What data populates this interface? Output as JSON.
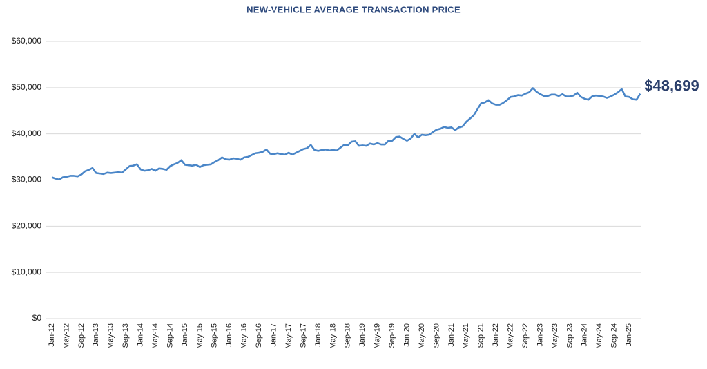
{
  "chart_data": {
    "type": "line",
    "title": "NEW-VEHICLE AVERAGE TRANSACTION PRICE",
    "categories": [
      "Jan-12",
      null,
      null,
      null,
      "May-12",
      null,
      null,
      null,
      "Sep-12",
      null,
      null,
      null,
      "Jan-13",
      null,
      null,
      null,
      "May-13",
      null,
      null,
      null,
      "Sep-13",
      null,
      null,
      null,
      "Jan-14",
      null,
      null,
      null,
      "May-14",
      null,
      null,
      null,
      "Sep-14",
      null,
      null,
      null,
      "Jan-15",
      null,
      null,
      null,
      "May-15",
      null,
      null,
      null,
      "Sep-15",
      null,
      null,
      null,
      "Jan-16",
      null,
      null,
      null,
      "May-16",
      null,
      null,
      null,
      "Sep-16",
      null,
      null,
      null,
      "Jan-17",
      null,
      null,
      null,
      "May-17",
      null,
      null,
      null,
      "Sep-17",
      null,
      null,
      null,
      "Jan-18",
      null,
      null,
      null,
      "May-18",
      null,
      null,
      null,
      "Sep-18",
      null,
      null,
      null,
      "Jan-19",
      null,
      null,
      null,
      "May-19",
      null,
      null,
      null,
      "Sep-19",
      null,
      null,
      null,
      "Jan-20",
      null,
      null,
      null,
      "May-20",
      null,
      null,
      null,
      "Sep-20",
      null,
      null,
      null,
      "Jan-21",
      null,
      null,
      null,
      "May-21",
      null,
      null,
      null,
      "Sep-21",
      null,
      null,
      null,
      "Jan-22",
      null,
      null,
      null,
      "May-22",
      null,
      null,
      null,
      "Sep-22",
      null,
      null,
      null,
      "Jan-23",
      null,
      null,
      null,
      "May-23",
      null,
      null,
      null,
      "Sep-23",
      null,
      null,
      null,
      "Jan-24",
      null,
      null,
      null,
      "May-24",
      null,
      null,
      null,
      "Sep-24",
      null,
      null,
      null,
      "Jan-25",
      null,
      null,
      null
    ],
    "values": [
      30600,
      30300,
      30100,
      30600,
      30700,
      30900,
      30900,
      30800,
      31200,
      31900,
      32200,
      32600,
      31500,
      31400,
      31300,
      31600,
      31500,
      31600,
      31700,
      31600,
      32300,
      33000,
      33100,
      33400,
      32300,
      32000,
      32100,
      32400,
      32000,
      32500,
      32400,
      32200,
      33000,
      33400,
      33700,
      34300,
      33300,
      33200,
      33100,
      33300,
      32800,
      33200,
      33300,
      33400,
      33900,
      34300,
      34900,
      34500,
      34400,
      34700,
      34600,
      34400,
      34900,
      35000,
      35400,
      35800,
      35900,
      36100,
      36600,
      35700,
      35600,
      35800,
      35600,
      35500,
      35900,
      35500,
      35900,
      36300,
      36700,
      36900,
      37600,
      36500,
      36300,
      36500,
      36600,
      36400,
      36500,
      36400,
      37000,
      37600,
      37500,
      38300,
      38400,
      37400,
      37500,
      37400,
      37900,
      37700,
      38000,
      37700,
      37700,
      38500,
      38500,
      39300,
      39400,
      38900,
      38500,
      39000,
      40000,
      39200,
      39800,
      39700,
      39800,
      40400,
      40900,
      41100,
      41500,
      41300,
      41400,
      40800,
      41400,
      41600,
      42600,
      43300,
      44000,
      45300,
      46600,
      46800,
      47300,
      46600,
      46300,
      46300,
      46700,
      47300,
      48000,
      48100,
      48400,
      48300,
      48700,
      49000,
      49900,
      49100,
      48600,
      48200,
      48200,
      48500,
      48500,
      48200,
      48600,
      48100,
      48100,
      48300,
      48900,
      48000,
      47600,
      47400,
      48100,
      48300,
      48200,
      48100,
      47800,
      48100,
      48500,
      49000,
      49700,
      48100,
      48000,
      47500,
      47400,
      48699
    ],
    "value_labels": [
      null,
      null,
      null,
      null,
      null,
      null,
      null,
      null,
      null,
      null,
      null,
      null,
      null,
      null,
      null,
      null,
      null,
      null,
      null,
      null,
      null,
      null,
      null,
      null,
      null,
      null,
      null,
      null,
      null,
      null,
      null,
      null,
      null,
      null,
      null,
      null,
      null,
      null,
      null,
      null,
      null,
      null,
      null,
      null,
      null,
      null,
      null,
      null,
      null,
      null,
      null,
      null,
      null,
      null,
      null,
      null,
      null,
      null,
      null,
      null,
      null,
      null,
      null,
      null,
      null,
      null,
      null,
      null,
      null,
      null,
      null,
      null,
      null,
      null,
      null,
      null,
      null,
      null,
      null,
      null,
      null,
      null,
      null,
      null,
      null,
      null,
      null,
      null,
      null,
      null,
      null,
      null,
      null,
      null,
      null,
      null,
      null,
      null,
      null,
      null,
      null,
      null,
      null,
      null,
      null,
      null,
      null,
      null,
      null,
      null,
      null,
      null,
      null,
      null,
      null,
      null,
      null,
      null,
      null,
      null,
      null,
      null,
      null,
      null,
      null,
      null,
      null,
      null,
      null,
      null,
      null,
      null,
      null,
      null,
      null,
      null,
      null,
      null,
      null,
      null,
      null,
      null,
      null,
      null,
      null,
      null,
      null,
      null,
      null,
      null,
      null,
      null,
      null,
      null,
      null,
      null,
      null,
      null,
      null,
      "$48,699"
    ],
    "color": "#4a86c8",
    "ylim": [
      0,
      60000
    ],
    "yticks": [
      {
        "value": 0,
        "label": "$0"
      },
      {
        "value": 10000,
        "label": "$10,000"
      },
      {
        "value": 20000,
        "label": "$20,000"
      },
      {
        "value": 30000,
        "label": "$30,000"
      },
      {
        "value": 40000,
        "label": "$40,000"
      },
      {
        "value": 50000,
        "label": "$50,000"
      },
      {
        "value": 60000,
        "label": "$60,000"
      }
    ],
    "grid": true
  }
}
